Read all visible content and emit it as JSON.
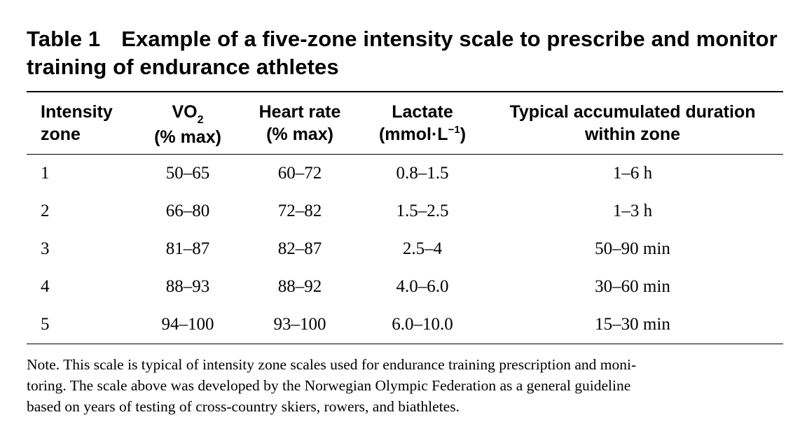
{
  "title": {
    "label": "Table 1",
    "text": "Example of a five-zone intensity scale to prescribe and monitor training of endurance athletes"
  },
  "headers": {
    "zone": {
      "line1": "Intensity",
      "line2": "zone"
    },
    "vo2": {
      "line1_main": "VO",
      "line1_sub": "2",
      "line2": "(% max)"
    },
    "hr": {
      "line1": "Heart rate",
      "line2": "(% max)"
    },
    "lactate": {
      "line1": "Lactate",
      "line2_main": "(mmol·L",
      "line2_sup": "−1",
      "line2_end": ")"
    },
    "duration": {
      "line1": "Typical accumulated duration",
      "line2": "within zone"
    }
  },
  "rows": [
    {
      "zone": "1",
      "vo2": "50–65",
      "hr": "60–72",
      "lactate": "0.8–1.5",
      "duration": "1–6 h"
    },
    {
      "zone": "2",
      "vo2": "66–80",
      "hr": "72–82",
      "lactate": "1.5–2.5",
      "duration": "1–3 h"
    },
    {
      "zone": "3",
      "vo2": "81–87",
      "hr": "82–87",
      "lactate": "2.5–4",
      "duration": "50–90 min"
    },
    {
      "zone": "4",
      "vo2": "88–93",
      "hr": "88–92",
      "lactate": "4.0–6.0",
      "duration": "30–60 min"
    },
    {
      "zone": "5",
      "vo2": "94–100",
      "hr": "93–100",
      "lactate": "6.0–10.0",
      "duration": "15–30 min"
    }
  ],
  "note": {
    "line1": "Note. This scale is typical of intensity zone scales used for endurance training prescription and moni-",
    "line2": "toring. The scale above was developed by the Norwegian Olympic Federation as a general guideline",
    "line3": "based on years of testing of cross-country skiers, rowers, and biathletes."
  }
}
